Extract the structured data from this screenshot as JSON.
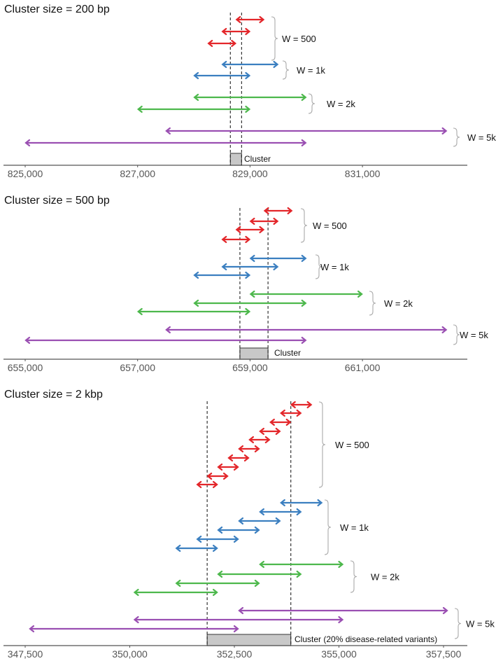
{
  "colors": {
    "w500": "#e3262a",
    "w1k": "#3b7fc0",
    "w2k": "#4db84c",
    "w5k": "#9a4fb2",
    "cluster_fill": "#c8c8c8"
  },
  "panels": [
    {
      "title": "Cluster size = 200 bp",
      "ticks": [
        {
          "value": 825000,
          "label": "825,000"
        },
        {
          "value": 827000,
          "label": "827,000"
        },
        {
          "value": 829000,
          "label": "829,000"
        },
        {
          "value": 831000,
          "label": "831,000"
        }
      ],
      "cluster": {
        "start": 828650,
        "end": 828850,
        "label": "Cluster"
      },
      "groups": [
        {
          "label": "W = 500",
          "color_key": "w500",
          "windows": [
            [
              828750,
              829250
            ],
            [
              828500,
              829000
            ],
            [
              828250,
              828750
            ]
          ]
        },
        {
          "label": "W = 1k",
          "color_key": "w1k",
          "windows": [
            [
              828500,
              829500
            ],
            [
              828000,
              829000
            ]
          ]
        },
        {
          "label": "W = 2k",
          "color_key": "w2k",
          "windows": [
            [
              828000,
              830000
            ],
            [
              827000,
              829000
            ]
          ]
        },
        {
          "label": "W = 5k",
          "color_key": "w5k",
          "windows": [
            [
              827500,
              832500
            ],
            [
              825000,
              830000
            ]
          ]
        }
      ]
    },
    {
      "title": "Cluster size = 500 bp",
      "ticks": [
        {
          "value": 655000,
          "label": "655,000"
        },
        {
          "value": 657000,
          "label": "657,000"
        },
        {
          "value": 659000,
          "label": "659,000"
        },
        {
          "value": 661000,
          "label": "661,000"
        }
      ],
      "cluster": {
        "start": 658820,
        "end": 659320,
        "label": "Cluster"
      },
      "groups": [
        {
          "label": "W = 500",
          "color_key": "w500",
          "windows": [
            [
              659250,
              659750
            ],
            [
              659000,
              659500
            ],
            [
              658750,
              659250
            ],
            [
              658500,
              659000
            ]
          ]
        },
        {
          "label": "W = 1k",
          "color_key": "w1k",
          "windows": [
            [
              659000,
              660000
            ],
            [
              658500,
              659500
            ],
            [
              658000,
              659000
            ]
          ]
        },
        {
          "label": "W = 2k",
          "color_key": "w2k",
          "windows": [
            [
              659000,
              661000
            ],
            [
              658000,
              660000
            ],
            [
              657000,
              659000
            ]
          ]
        },
        {
          "label": "W = 5k",
          "color_key": "w5k",
          "windows": [
            [
              657500,
              662500
            ],
            [
              655000,
              660000
            ]
          ]
        }
      ]
    },
    {
      "title": "Cluster size = 2 kbp",
      "ticks": [
        {
          "value": 347500,
          "label": "347,500"
        },
        {
          "value": 350000,
          "label": "350,000"
        },
        {
          "value": 352500,
          "label": "352,500"
        },
        {
          "value": 355000,
          "label": "355,000"
        },
        {
          "value": 357500,
          "label": "357,500"
        }
      ],
      "cluster": {
        "start": 351850,
        "end": 353850,
        "label": "Cluster (20% disease-related variants)"
      },
      "groups": [
        {
          "label": "W = 500",
          "color_key": "w500",
          "windows": [
            [
              353850,
              354350
            ],
            [
              353600,
              354100
            ],
            [
              353350,
              353850
            ],
            [
              353100,
              353600
            ],
            [
              352850,
              353350
            ],
            [
              352600,
              353100
            ],
            [
              352350,
              352850
            ],
            [
              352100,
              352600
            ],
            [
              351850,
              352350
            ],
            [
              351600,
              352100
            ]
          ]
        },
        {
          "label": "W = 1k",
          "color_key": "w1k",
          "windows": [
            [
              353600,
              354600
            ],
            [
              353100,
              354100
            ],
            [
              352600,
              353600
            ],
            [
              352100,
              353100
            ],
            [
              351600,
              352600
            ],
            [
              351100,
              352100
            ]
          ]
        },
        {
          "label": "W = 2k",
          "color_key": "w2k",
          "windows": [
            [
              353100,
              355100
            ],
            [
              352100,
              354100
            ],
            [
              351100,
              353100
            ],
            [
              350100,
              352100
            ]
          ]
        },
        {
          "label": "W = 5k",
          "color_key": "w5k",
          "windows": [
            [
              352600,
              357600
            ],
            [
              350100,
              355100
            ],
            [
              347600,
              352600
            ]
          ]
        }
      ]
    }
  ]
}
